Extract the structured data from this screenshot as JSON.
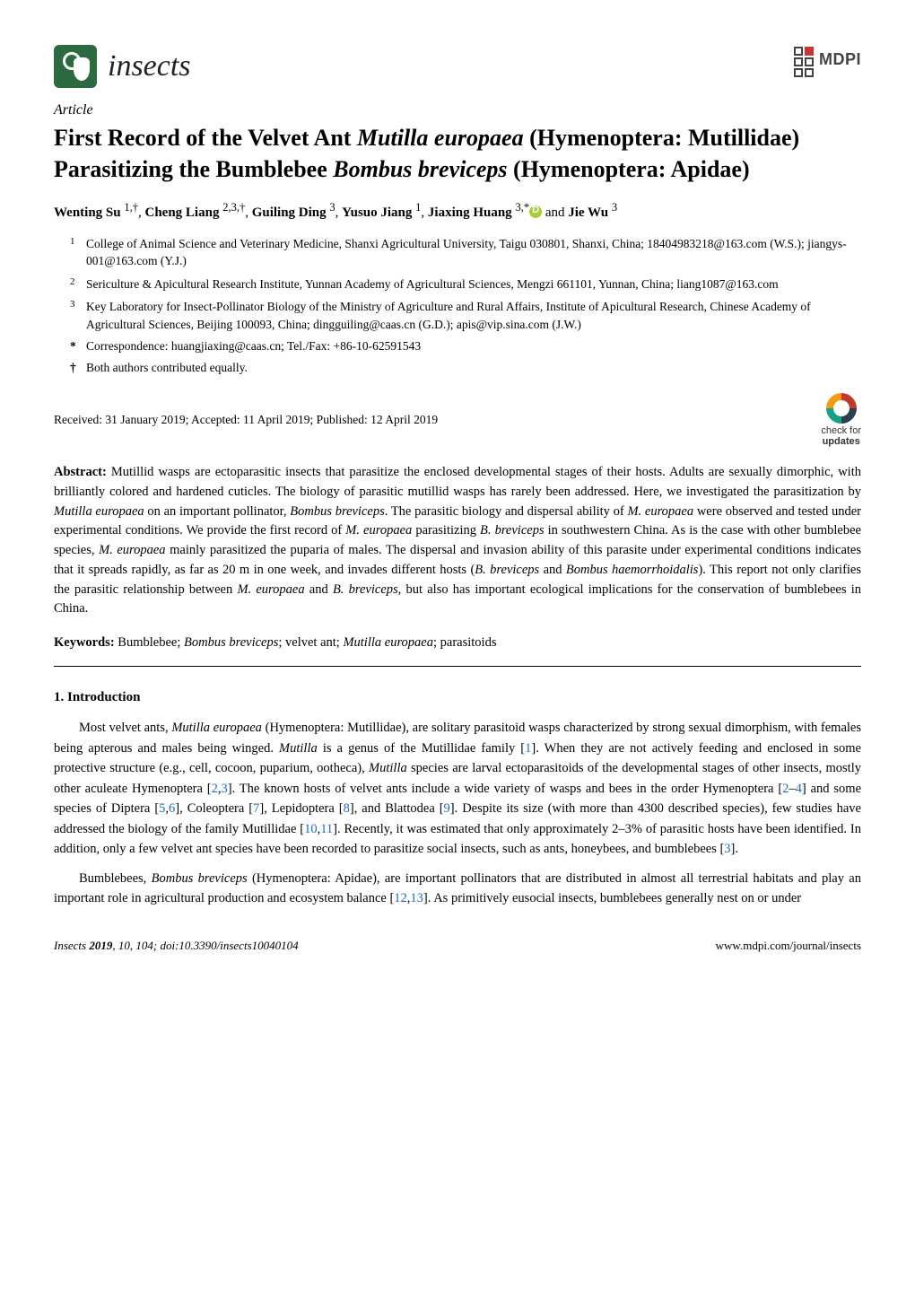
{
  "journal": {
    "name": "insects",
    "publisher": "MDPI"
  },
  "article_type": "Article",
  "title": {
    "pre": "First Record of the Velvet Ant ",
    "sp1": "Mutilla europaea",
    "mid": " (Hymenoptera: Mutillidae) Parasitizing the Bumblebee ",
    "sp2": "Bombus breviceps",
    "post": " (Hymenoptera: Apidae)"
  },
  "authors": {
    "a1": "Wenting Su",
    "s1": "1,†",
    "a2": "Cheng Liang",
    "s2": "2,3,†",
    "a3": "Guiling Ding",
    "s3": "3",
    "a4": "Yusuo Jiang",
    "s4": "1",
    "a5": "Jiaxing Huang",
    "s5": "3,*",
    "a6": "Jie Wu",
    "s6": "3"
  },
  "affiliations": {
    "n1": "1",
    "t1": "College of Animal Science and Veterinary Medicine, Shanxi Agricultural University, Taigu 030801, Shanxi, China; 18404983218@163.com (W.S.); jiangys-001@163.com (Y.J.)",
    "n2": "2",
    "t2": "Sericulture & Apicultural Research Institute, Yunnan Academy of Agricultural Sciences, Mengzi 661101, Yunnan, China; liang1087@163.com",
    "n3": "3",
    "t3": "Key Laboratory for Insect-Pollinator Biology of the Ministry of Agriculture and Rural Affairs, Institute of Apicultural Research, Chinese Academy of Agricultural Sciences, Beijing 100093, China; dingguiling@caas.cn (G.D.); apis@vip.sina.com (J.W.)"
  },
  "correspondence": {
    "marker": "*",
    "text": "Correspondence: huangjiaxing@caas.cn; Tel./Fax: +86-10-62591543"
  },
  "contrib": {
    "marker": "†",
    "text": "Both authors contributed equally."
  },
  "dates": "Received: 31 January 2019; Accepted: 11 April 2019; Published: 12 April 2019",
  "check_updates": {
    "line1": "check for",
    "line2": "updates"
  },
  "abstract": {
    "label": "Abstract:",
    "p1a": " Mutillid wasps are ectoparasitic insects that parasitize the enclosed developmental stages of their hosts. Adults are sexually dimorphic, with brilliantly colored and hardened cuticles. The biology of parasitic mutillid wasps has rarely been addressed. Here, we investigated the parasitization by ",
    "sp1": "Mutilla europaea",
    "p1b": " on an important pollinator, ",
    "sp2": "Bombus breviceps",
    "p1c": ". The parasitic biology and dispersal ability of ",
    "sp3": "M. europaea",
    "p1d": " were observed and tested under experimental conditions. We provide the first record of ",
    "sp4": "M. europaea",
    "p1e": " parasitizing ",
    "sp5": "B. breviceps",
    "p1f": " in southwestern China. As is the case with other bumblebee species, ",
    "sp6": "M. europaea",
    "p1g": " mainly parasitized the puparia of males. The dispersal and invasion ability of this parasite under experimental conditions indicates that it spreads rapidly, as far as 20 m in one week, and invades different hosts (",
    "sp7": "B. breviceps",
    "p1h": " and ",
    "sp8": "Bombus haemorrhoidalis",
    "p1i": "). This report not only clarifies the parasitic relationship between ",
    "sp9": "M. europaea",
    "p1j": " and ",
    "sp10": "B. breviceps",
    "p1k": ", but also has important ecological implications for the conservation of bumblebees in China."
  },
  "keywords": {
    "label": "Keywords:",
    "k1": " Bumblebee; ",
    "s1": "Bombus breviceps",
    "k2": "; velvet ant; ",
    "s2": "Mutilla europaea",
    "k3": "; parasitoids"
  },
  "section1": "1. Introduction",
  "para1": {
    "a": "Most velvet ants, ",
    "s1": "Mutilla europaea",
    "b": " (Hymenoptera: Mutillidae), are solitary parasitoid wasps characterized by strong sexual dimorphism, with females being apterous and males being winged. ",
    "s2": "Mutilla",
    "c": " is a genus of the Mutillidae family [",
    "r1": "1",
    "d": "]. When they are not actively feeding and enclosed in some protective structure (e.g., cell, cocoon, puparium, ootheca), ",
    "s3": "Mutilla",
    "e": " species are larval ectoparasitoids of the developmental stages of other insects, mostly other aculeate Hymenoptera [",
    "r2": "2",
    "f": ",",
    "r3": "3",
    "g": "]. The known hosts of velvet ants include a wide variety of wasps and bees in the order Hymenoptera [",
    "r4": "2",
    "h": "–",
    "r5": "4",
    "i": "] and some species of Diptera [",
    "r6": "5",
    "j": ",",
    "r7": "6",
    "k": "], Coleoptera [",
    "r8": "7",
    "l": "], Lepidoptera [",
    "r9": "8",
    "m": "], and Blattodea [",
    "r10": "9",
    "n": "]. Despite its size (with more than 4300 described species), few studies have addressed the biology of the family Mutillidae [",
    "r11": "10",
    "o": ",",
    "r12": "11",
    "p": "]. Recently, it was estimated that only approximately 2–3% of parasitic hosts have been identified. In addition, only a few velvet ant species have been recorded to parasitize social insects, such as ants, honeybees, and bumblebees [",
    "r13": "3",
    "q": "]."
  },
  "para2": {
    "a": "Bumblebees, ",
    "s1": "Bombus breviceps",
    "b": " (Hymenoptera: Apidae), are important pollinators that are distributed in almost all terrestrial habitats and play an important role in agricultural production and ecosystem balance [",
    "r1": "12",
    "c": ",",
    "r2": "13",
    "d": "]. As primitively eusocial insects, bumblebees generally nest on or under"
  },
  "footer": {
    "left_journal": "Insects ",
    "left_year": "2019",
    "left_rest": ", 10, 104; doi:10.3390/insects10040104",
    "right": "www.mdpi.com/journal/insects"
  }
}
